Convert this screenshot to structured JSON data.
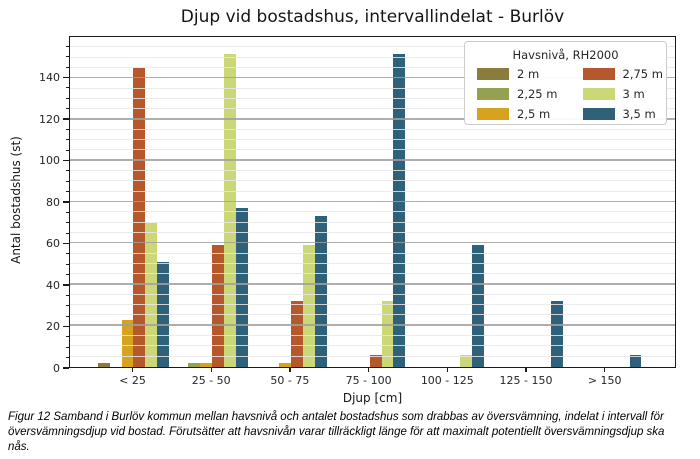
{
  "chart_data": {
    "type": "bar",
    "title": "Djup vid bostadshus, intervallindelat - Burlöv",
    "xlabel": "Djup [cm]",
    "ylabel": "Antal bostadshus (st)",
    "categories": [
      "< 25",
      "25 - 50",
      "50 - 75",
      "75 - 100",
      "100 - 125",
      "125 - 150",
      "> 150"
    ],
    "series": [
      {
        "name": "2 m",
        "color": "#8a7c3a",
        "values": [
          2,
          0,
          0,
          0,
          0,
          0,
          0
        ]
      },
      {
        "name": "2,25 m",
        "color": "#95a050",
        "values": [
          0,
          2,
          0,
          0,
          0,
          0,
          0
        ]
      },
      {
        "name": "2,5 m",
        "color": "#d5a31f",
        "values": [
          23,
          2,
          2,
          0,
          0,
          0,
          0
        ]
      },
      {
        "name": "2,75 m",
        "color": "#b5592c",
        "values": [
          145,
          59,
          32,
          6,
          0,
          0,
          0
        ]
      },
      {
        "name": "3 m",
        "color": "#ccd878",
        "values": [
          70,
          152,
          59,
          32,
          6,
          0,
          0
        ]
      },
      {
        "name": "3,5 m",
        "color": "#30617b",
        "values": [
          51,
          77,
          73,
          152,
          59,
          32,
          6
        ]
      }
    ],
    "ylim": [
      0,
      160
    ],
    "yticks": [
      0,
      20,
      40,
      60,
      80,
      100,
      120,
      140
    ],
    "ytick_minor_step": 5,
    "grid": "horizontal, major and minor, drawn over bars",
    "legend": {
      "title": "Havsnivå, RH2000",
      "position": "upper right",
      "columns": 2
    }
  },
  "caption": "Figur 12 Samband i Burlöv kommun mellan havsnivå och antalet bostadshus som drabbas av översvämning, indelat i intervall för översvämningsdjup vid bostad. Förutsätter att havsnivån varar tillräckligt länge för att maximalt potentiellt översvämningsdjup ska nås."
}
